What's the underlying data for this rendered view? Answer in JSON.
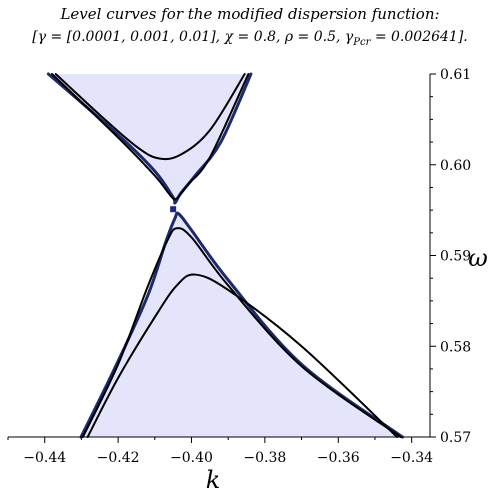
{
  "chart_data": {
    "type": "line",
    "title": "Level curves for the modified dispersion function:",
    "subtitle": "[γ = [0.0001, 0.001, 0.01], χ = 0.8, ρ = 0.5, γPcr = 0.002641].",
    "subtitle_parts": {
      "gamma": "γ = [0.0001, 0.001, 0.01], ",
      "chi": "χ = 0.8, ",
      "rho": "ρ = 0.5, ",
      "gamma_pcr_symbol": "γ",
      "gamma_pcr_subscript": "Pcr",
      "gamma_pcr_value": " = 0.002641",
      "open_bracket": "[",
      "close_bracket": "]."
    },
    "xlabel": "k",
    "ylabel": "ω",
    "xlim": [
      -0.45,
      -0.335
    ],
    "ylim": [
      0.57,
      0.61
    ],
    "x_ticks": [
      -0.44,
      -0.42,
      -0.4,
      -0.38,
      -0.36,
      -0.34
    ],
    "x_tick_labels": [
      "−0.44",
      "−0.42",
      "−0.40",
      "−0.38",
      "−0.36",
      "−0.34"
    ],
    "y_ticks": [
      0.57,
      0.58,
      0.59,
      0.6,
      0.61
    ],
    "y_tick_labels": [
      "0.57",
      "0.58",
      "0.59",
      "0.60",
      "0.61"
    ],
    "y_axis_position": "right",
    "legend": "none",
    "grid": false,
    "critical_point": {
      "x": -0.405,
      "y": 0.5951
    },
    "colors": {
      "fill": "#e4e4fa",
      "outer_curve": "#1c2a6e",
      "curve": "#000000",
      "marker": "#1a2a8c"
    },
    "series": [
      {
        "role": "upper-outer",
        "x": [
          -0.439,
          -0.42,
          -0.41,
          -0.405,
          -0.4045,
          -0.403,
          -0.399,
          -0.392,
          -0.3838
        ],
        "y": [
          0.61,
          0.6033,
          0.5993,
          0.5964,
          0.5958,
          0.5968,
          0.5988,
          0.6025,
          0.61
        ]
      },
      {
        "role": "upper-inner-1",
        "x": [
          -0.438,
          -0.42,
          -0.41,
          -0.4055,
          -0.404,
          -0.401,
          -0.395,
          -0.3845
        ],
        "y": [
          0.61,
          0.603,
          0.5988,
          0.5965,
          0.5963,
          0.5978,
          0.6008,
          0.61
        ]
      },
      {
        "role": "upper-inner-2",
        "x": [
          -0.437,
          -0.425,
          -0.415,
          -0.409,
          -0.403,
          -0.395,
          -0.3855
        ],
        "y": [
          0.61,
          0.6055,
          0.602,
          0.6007,
          0.6011,
          0.6038,
          0.61
        ]
      },
      {
        "role": "lower-outer",
        "x": [
          -0.4301,
          -0.421,
          -0.412,
          -0.407,
          -0.4045,
          -0.4035,
          -0.4,
          -0.39,
          -0.37,
          -0.3425
        ],
        "y": [
          0.57,
          0.5775,
          0.5855,
          0.5915,
          0.5941,
          0.5946,
          0.5928,
          0.5873,
          0.578,
          0.57
        ]
      },
      {
        "role": "lower-inner-1",
        "x": [
          -0.4296,
          -0.42,
          -0.412,
          -0.4065,
          -0.404,
          -0.4,
          -0.39,
          -0.37,
          -0.343
        ],
        "y": [
          0.57,
          0.578,
          0.5865,
          0.5917,
          0.593,
          0.592,
          0.5867,
          0.5778,
          0.57
        ]
      },
      {
        "role": "lower-inner-2",
        "x": [
          -0.4283,
          -0.42,
          -0.41,
          -0.404,
          -0.399,
          -0.39,
          -0.37,
          -0.344
        ],
        "y": [
          0.57,
          0.5765,
          0.5832,
          0.5867,
          0.5879,
          0.5862,
          0.58,
          0.57
        ]
      }
    ]
  }
}
